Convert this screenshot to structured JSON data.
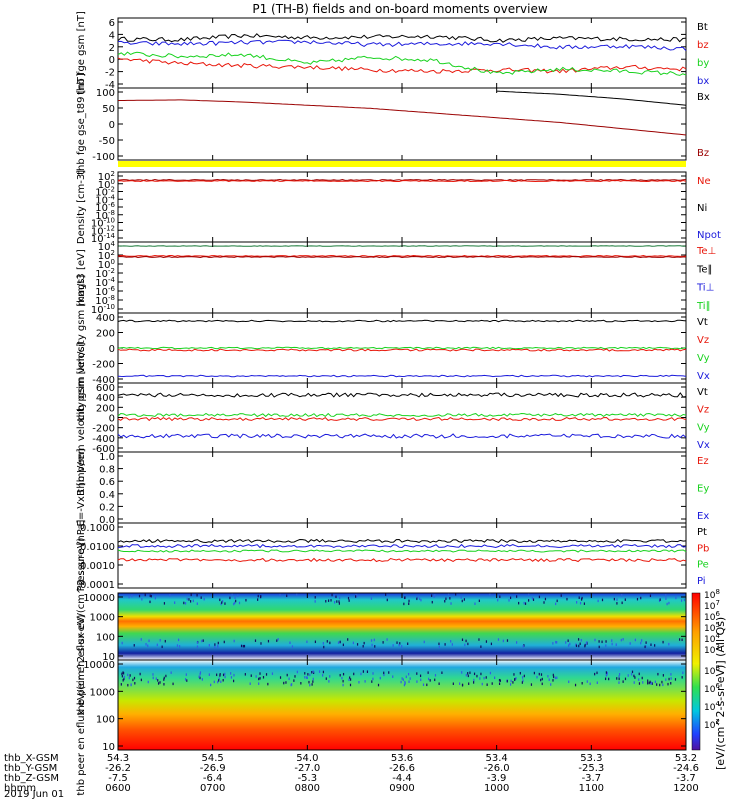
{
  "title": "P1 (TH-B) fields and on-board moments overview",
  "xtime": {
    "rows": [
      {
        "label": "thb_X-GSM",
        "values": [
          "54.3",
          "54.5",
          "54.0",
          "53.6",
          "53.4",
          "53.3",
          "53.2"
        ]
      },
      {
        "label": "thb_Y-GSM",
        "values": [
          "-26.2",
          "-26.9",
          "-27.0",
          "-26.6",
          "-26.0",
          "-25.3",
          "-24.6"
        ]
      },
      {
        "label": "thb_Z-GSM",
        "values": [
          "-7.5",
          "-6.4",
          "-5.3",
          "-4.4",
          "-3.9",
          "-3.7",
          "-3.7"
        ]
      },
      {
        "label": "hhmm",
        "values": [
          "0600",
          "0700",
          "0800",
          "0900",
          "1000",
          "1100",
          "1200"
        ]
      }
    ],
    "date": "2019 Jun 01"
  },
  "colors": {
    "black": "#000000",
    "red": "#e8170b",
    "green": "#19d21f",
    "blue": "#1a1adb",
    "yellow": "#ffff00",
    "darkred": "#9a0000"
  },
  "colorbar_label": "[eV/(cm^2-s-sr-eV)] (All Qs)",
  "colorbar_ticks_upper": [
    "10^8",
    "10^7",
    "10^6",
    "10^5",
    "10^4",
    "10^3"
  ],
  "colorbar_ticks_lower": [
    "10^8",
    "10^6",
    "10^4",
    "10^2"
  ],
  "chart_data": [
    {
      "type": "line",
      "ylabel": "thb fge gsm [nT]",
      "yticks": [
        "6",
        "4",
        "2",
        "0",
        "-2",
        "-4"
      ],
      "ylim": [
        -4,
        6
      ],
      "legend": [
        "Bt",
        "bz",
        "by",
        "bx"
      ],
      "series": [
        {
          "name": "Bt",
          "color": "black",
          "values": [
            3.0,
            2.9,
            3.5,
            3.2,
            3.3,
            3.4,
            2.8,
            3.1,
            3.0,
            2.9
          ]
        },
        {
          "name": "bz",
          "color": "red",
          "values": [
            0.2,
            -0.5,
            -0.8,
            -1.0,
            -1.4,
            -1.6,
            -1.4,
            -1.6,
            -1.0,
            -1.3
          ]
        },
        {
          "name": "by",
          "color": "green",
          "values": [
            1.0,
            0.5,
            0.8,
            -0.5,
            0.4,
            0.0,
            -2.0,
            -1.3,
            -1.6,
            -2.0
          ]
        },
        {
          "name": "bx",
          "color": "blue",
          "values": [
            2.4,
            2.3,
            2.5,
            2.6,
            2.2,
            2.3,
            2.4,
            1.8,
            2.0,
            1.6
          ]
        }
      ]
    },
    {
      "type": "line",
      "ylabel": "thb fge gse_t89 [nT]",
      "yticks": [
        "100",
        "50",
        "0",
        "-50",
        "-100"
      ],
      "ylim": [
        -130,
        100
      ],
      "legend": [
        "Bx",
        "Bz"
      ],
      "series": [
        {
          "name": "Bx",
          "color": "black",
          "values": [
            null,
            null,
            null,
            null,
            null,
            null,
            90,
            80,
            65,
            45
          ]
        },
        {
          "name": "Bz",
          "color": "darkred",
          "values": [
            60,
            62,
            55,
            45,
            35,
            20,
            5,
            -10,
            -30,
            -50
          ]
        }
      ]
    },
    {
      "type": "line",
      "ylabel": "Density [cm-3]",
      "yticks": [
        "10^2",
        "10^0",
        "10^-2",
        "10^-4",
        "10^-6",
        "10^-8",
        "10^-10",
        "10^-12",
        "10^-14"
      ],
      "ylim": [
        -14,
        2
      ],
      "legend": [
        "Ne",
        "Ni",
        "Npot"
      ]
    },
    {
      "type": "line",
      "ylabel": "magt3 [eV]",
      "yticks": [
        "10^4",
        "10^2",
        "10^0",
        "10^-2",
        "10^-4",
        "10^-6",
        "10^-8",
        "10^-10"
      ],
      "ylim": [
        -10,
        4
      ],
      "legend": [
        "Te⊥",
        "Te∥",
        "Ti⊥",
        "Ti∥"
      ]
    },
    {
      "type": "line",
      "ylabel": "thb peim velocity gsm [km/s]",
      "yticks": [
        "400",
        "200",
        "0",
        "-200",
        "-400"
      ],
      "ylim": [
        -400,
        400
      ],
      "legend": [
        "Vt",
        "Vz",
        "Vy",
        "Vx"
      ]
    },
    {
      "type": "line",
      "ylabel": "thb peem velocity gsm [km/s]",
      "yticks": [
        "600",
        "400",
        "200",
        "0",
        "-200",
        "-400",
        "-600"
      ],
      "ylim": [
        -600,
        600
      ],
      "legend": [
        "Vt",
        "Vz",
        "Vy",
        "Vx"
      ]
    },
    {
      "type": "line",
      "ylabel": "E=-VxB [mV/m]",
      "yticks": [
        "1.0",
        "0.8",
        "0.6",
        "0.4",
        "0.2",
        "0.0"
      ],
      "ylim": [
        0,
        1
      ],
      "legend": [
        "Ez",
        "Ey",
        "Ex"
      ]
    },
    {
      "type": "line",
      "ylabel": "Pressure [nPa]",
      "yticks": [
        "0.1000",
        "0.0100",
        "0.0010",
        "0.0001"
      ],
      "ylim": [
        0.0001,
        0.1
      ],
      "legend": [
        "Pt",
        "Pb",
        "Pe",
        "Pi"
      ]
    },
    {
      "type": "heatmap",
      "ylabel": "thb peir en eflux eV/(cm^2-s-sr-eV)",
      "yticks": [
        "10000",
        "1000",
        "100",
        "10"
      ]
    },
    {
      "type": "heatmap",
      "ylabel": "thb peer en eflux eV/(cm^2-s-sr-eV)",
      "yticks": [
        "10000",
        "1000",
        "100",
        "10"
      ]
    }
  ]
}
